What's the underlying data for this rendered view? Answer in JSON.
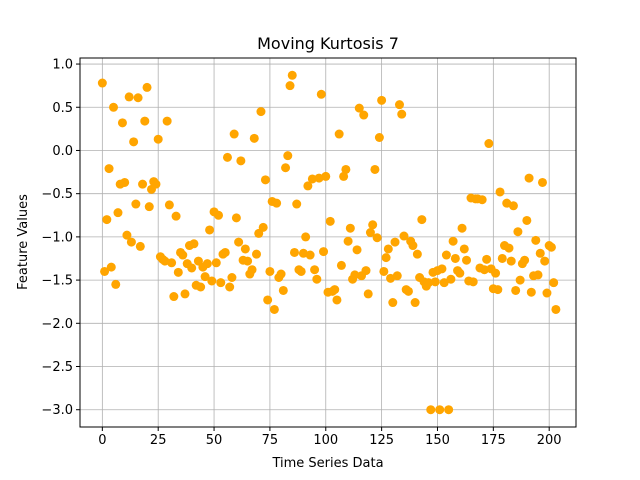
{
  "chart_data": {
    "type": "scatter",
    "title": "Moving Kurtosis 7",
    "xlabel": "Time Series Data",
    "ylabel": "Feature Values",
    "xlim": [
      -10,
      212
    ],
    "ylim": [
      -3.2,
      1.07
    ],
    "xticks": [
      0,
      25,
      50,
      75,
      100,
      125,
      150,
      175,
      200
    ],
    "yticks": [
      1.0,
      0.5,
      0.0,
      -0.5,
      -1.0,
      -1.5,
      -2.0,
      -2.5,
      -3.0
    ],
    "ytick_labels": [
      "1.0",
      "0.5",
      "0.0",
      "−0.5",
      "−1.0",
      "−1.5",
      "−2.0",
      "−2.5",
      "−3.0"
    ],
    "grid": true,
    "marker_color": "#FFA500",
    "points": [
      {
        "x": 0,
        "y": 0.78
      },
      {
        "x": 1,
        "y": -1.4
      },
      {
        "x": 2,
        "y": -0.8
      },
      {
        "x": 3,
        "y": -0.21
      },
      {
        "x": 4,
        "y": -1.35
      },
      {
        "x": 5,
        "y": 0.5
      },
      {
        "x": 6,
        "y": -1.55
      },
      {
        "x": 7,
        "y": -0.72
      },
      {
        "x": 8,
        "y": -0.39
      },
      {
        "x": 9,
        "y": 0.32
      },
      {
        "x": 10,
        "y": -0.37
      },
      {
        "x": 11,
        "y": -0.98
      },
      {
        "x": 12,
        "y": 0.62
      },
      {
        "x": 13,
        "y": -1.06
      },
      {
        "x": 14,
        "y": 0.1
      },
      {
        "x": 15,
        "y": -0.62
      },
      {
        "x": 16,
        "y": 0.61
      },
      {
        "x": 17,
        "y": -1.11
      },
      {
        "x": 18,
        "y": -0.39
      },
      {
        "x": 19,
        "y": 0.34
      },
      {
        "x": 20,
        "y": 0.73
      },
      {
        "x": 21,
        "y": -0.65
      },
      {
        "x": 22,
        "y": -0.45
      },
      {
        "x": 23,
        "y": -0.36
      },
      {
        "x": 24,
        "y": -0.39
      },
      {
        "x": 25,
        "y": 0.13
      },
      {
        "x": 26,
        "y": -1.23
      },
      {
        "x": 27,
        "y": -1.26
      },
      {
        "x": 28,
        "y": -1.28
      },
      {
        "x": 29,
        "y": 0.34
      },
      {
        "x": 30,
        "y": -0.63
      },
      {
        "x": 31,
        "y": -1.3
      },
      {
        "x": 32,
        "y": -1.69
      },
      {
        "x": 33,
        "y": -0.76
      },
      {
        "x": 34,
        "y": -1.41
      },
      {
        "x": 35,
        "y": -1.18
      },
      {
        "x": 36,
        "y": -1.21
      },
      {
        "x": 37,
        "y": -1.66
      },
      {
        "x": 38,
        "y": -1.31
      },
      {
        "x": 39,
        "y": -1.1
      },
      {
        "x": 40,
        "y": -1.36
      },
      {
        "x": 41,
        "y": -1.08
      },
      {
        "x": 42,
        "y": -1.56
      },
      {
        "x": 43,
        "y": -1.28
      },
      {
        "x": 44,
        "y": -1.58
      },
      {
        "x": 45,
        "y": -1.35
      },
      {
        "x": 46,
        "y": -1.46
      },
      {
        "x": 47,
        "y": -1.31
      },
      {
        "x": 48,
        "y": -0.92
      },
      {
        "x": 49,
        "y": -1.51
      },
      {
        "x": 50,
        "y": -0.71
      },
      {
        "x": 51,
        "y": -1.3
      },
      {
        "x": 52,
        "y": -0.75
      },
      {
        "x": 53,
        "y": -1.53
      },
      {
        "x": 54,
        "y": -1.2
      },
      {
        "x": 55,
        "y": -1.18
      },
      {
        "x": 56,
        "y": -0.08
      },
      {
        "x": 57,
        "y": -1.58
      },
      {
        "x": 58,
        "y": -1.47
      },
      {
        "x": 59,
        "y": 0.19
      },
      {
        "x": 60,
        "y": -0.78
      },
      {
        "x": 61,
        "y": -1.06
      },
      {
        "x": 62,
        "y": -0.12
      },
      {
        "x": 63,
        "y": -1.27
      },
      {
        "x": 64,
        "y": -1.14
      },
      {
        "x": 65,
        "y": -1.28
      },
      {
        "x": 66,
        "y": -1.43
      },
      {
        "x": 67,
        "y": -1.38
      },
      {
        "x": 68,
        "y": 0.14
      },
      {
        "x": 69,
        "y": -1.2
      },
      {
        "x": 70,
        "y": -0.96
      },
      {
        "x": 71,
        "y": 0.45
      },
      {
        "x": 72,
        "y": -0.89
      },
      {
        "x": 73,
        "y": -0.34
      },
      {
        "x": 74,
        "y": -1.73
      },
      {
        "x": 75,
        "y": -1.4
      },
      {
        "x": 76,
        "y": -0.59
      },
      {
        "x": 77,
        "y": -1.84
      },
      {
        "x": 78,
        "y": -0.61
      },
      {
        "x": 79,
        "y": -1.47
      },
      {
        "x": 80,
        "y": -1.43
      },
      {
        "x": 81,
        "y": -1.62
      },
      {
        "x": 82,
        "y": -0.2
      },
      {
        "x": 83,
        "y": -0.06
      },
      {
        "x": 84,
        "y": 0.75
      },
      {
        "x": 85,
        "y": 0.87
      },
      {
        "x": 86,
        "y": -1.18
      },
      {
        "x": 87,
        "y": -0.62
      },
      {
        "x": 88,
        "y": -1.38
      },
      {
        "x": 89,
        "y": -1.4
      },
      {
        "x": 90,
        "y": -1.19
      },
      {
        "x": 91,
        "y": -1.0
      },
      {
        "x": 92,
        "y": -0.41
      },
      {
        "x": 93,
        "y": -1.21
      },
      {
        "x": 94,
        "y": -0.33
      },
      {
        "x": 95,
        "y": -1.38
      },
      {
        "x": 96,
        "y": -1.49
      },
      {
        "x": 97,
        "y": -0.32
      },
      {
        "x": 98,
        "y": 0.65
      },
      {
        "x": 99,
        "y": -1.17
      },
      {
        "x": 100,
        "y": -0.3
      },
      {
        "x": 101,
        "y": -1.64
      },
      {
        "x": 102,
        "y": -0.82
      },
      {
        "x": 103,
        "y": -1.63
      },
      {
        "x": 104,
        "y": -1.61
      },
      {
        "x": 105,
        "y": -1.73
      },
      {
        "x": 106,
        "y": 0.19
      },
      {
        "x": 107,
        "y": -1.33
      },
      {
        "x": 108,
        "y": -0.3
      },
      {
        "x": 109,
        "y": -0.22
      },
      {
        "x": 110,
        "y": -1.05
      },
      {
        "x": 111,
        "y": -0.9
      },
      {
        "x": 112,
        "y": -1.49
      },
      {
        "x": 113,
        "y": -1.44
      },
      {
        "x": 114,
        "y": -1.15
      },
      {
        "x": 115,
        "y": 0.49
      },
      {
        "x": 116,
        "y": -1.45
      },
      {
        "x": 117,
        "y": 0.41
      },
      {
        "x": 118,
        "y": -1.39
      },
      {
        "x": 119,
        "y": -1.66
      },
      {
        "x": 120,
        "y": -0.95
      },
      {
        "x": 121,
        "y": -0.86
      },
      {
        "x": 122,
        "y": -0.22
      },
      {
        "x": 123,
        "y": -1.01
      },
      {
        "x": 124,
        "y": 0.15
      },
      {
        "x": 125,
        "y": 0.58
      },
      {
        "x": 126,
        "y": -1.4
      },
      {
        "x": 127,
        "y": -1.24
      },
      {
        "x": 128,
        "y": -1.14
      },
      {
        "x": 129,
        "y": -1.48
      },
      {
        "x": 130,
        "y": -1.76
      },
      {
        "x": 131,
        "y": -1.06
      },
      {
        "x": 132,
        "y": -1.45
      },
      {
        "x": 133,
        "y": 0.53
      },
      {
        "x": 134,
        "y": 0.42
      },
      {
        "x": 135,
        "y": -0.99
      },
      {
        "x": 136,
        "y": -1.61
      },
      {
        "x": 137,
        "y": -1.63
      },
      {
        "x": 138,
        "y": -1.05
      },
      {
        "x": 139,
        "y": -1.1
      },
      {
        "x": 140,
        "y": -1.76
      },
      {
        "x": 141,
        "y": -1.2
      },
      {
        "x": 142,
        "y": -1.47
      },
      {
        "x": 143,
        "y": -0.8
      },
      {
        "x": 144,
        "y": -1.52
      },
      {
        "x": 145,
        "y": -1.57
      },
      {
        "x": 146,
        "y": -1.53
      },
      {
        "x": 147,
        "y": -3.0
      },
      {
        "x": 148,
        "y": -1.41
      },
      {
        "x": 149,
        "y": -1.52
      },
      {
        "x": 150,
        "y": -1.39
      },
      {
        "x": 151,
        "y": -3.0
      },
      {
        "x": 152,
        "y": -1.37
      },
      {
        "x": 153,
        "y": -1.53
      },
      {
        "x": 154,
        "y": -1.21
      },
      {
        "x": 155,
        "y": -3.0
      },
      {
        "x": 156,
        "y": -1.49
      },
      {
        "x": 157,
        "y": -1.05
      },
      {
        "x": 158,
        "y": -1.25
      },
      {
        "x": 159,
        "y": -1.39
      },
      {
        "x": 160,
        "y": -1.42
      },
      {
        "x": 161,
        "y": -0.9
      },
      {
        "x": 162,
        "y": -1.14
      },
      {
        "x": 163,
        "y": -1.27
      },
      {
        "x": 164,
        "y": -1.51
      },
      {
        "x": 165,
        "y": -0.55
      },
      {
        "x": 166,
        "y": -1.52
      },
      {
        "x": 167,
        "y": -0.56
      },
      {
        "x": 168,
        "y": -0.56
      },
      {
        "x": 169,
        "y": -1.36
      },
      {
        "x": 170,
        "y": -0.57
      },
      {
        "x": 171,
        "y": -1.38
      },
      {
        "x": 172,
        "y": -1.26
      },
      {
        "x": 173,
        "y": 0.08
      },
      {
        "x": 174,
        "y": -1.37
      },
      {
        "x": 175,
        "y": -1.6
      },
      {
        "x": 176,
        "y": -1.42
      },
      {
        "x": 177,
        "y": -1.61
      },
      {
        "x": 178,
        "y": -0.48
      },
      {
        "x": 179,
        "y": -1.25
      },
      {
        "x": 180,
        "y": -1.1
      },
      {
        "x": 181,
        "y": -0.61
      },
      {
        "x": 182,
        "y": -1.13
      },
      {
        "x": 183,
        "y": -1.28
      },
      {
        "x": 184,
        "y": -0.64
      },
      {
        "x": 185,
        "y": -1.62
      },
      {
        "x": 186,
        "y": -0.94
      },
      {
        "x": 187,
        "y": -1.5
      },
      {
        "x": 188,
        "y": -1.31
      },
      {
        "x": 189,
        "y": -1.27
      },
      {
        "x": 190,
        "y": -0.81
      },
      {
        "x": 191,
        "y": -0.32
      },
      {
        "x": 192,
        "y": -1.64
      },
      {
        "x": 193,
        "y": -1.45
      },
      {
        "x": 194,
        "y": -1.04
      },
      {
        "x": 195,
        "y": -1.44
      },
      {
        "x": 196,
        "y": -1.19
      },
      {
        "x": 197,
        "y": -0.37
      },
      {
        "x": 198,
        "y": -1.28
      },
      {
        "x": 199,
        "y": -1.65
      },
      {
        "x": 200,
        "y": -1.1
      },
      {
        "x": 201,
        "y": -1.12
      },
      {
        "x": 202,
        "y": -1.53
      },
      {
        "x": 203,
        "y": -1.84
      }
    ]
  }
}
